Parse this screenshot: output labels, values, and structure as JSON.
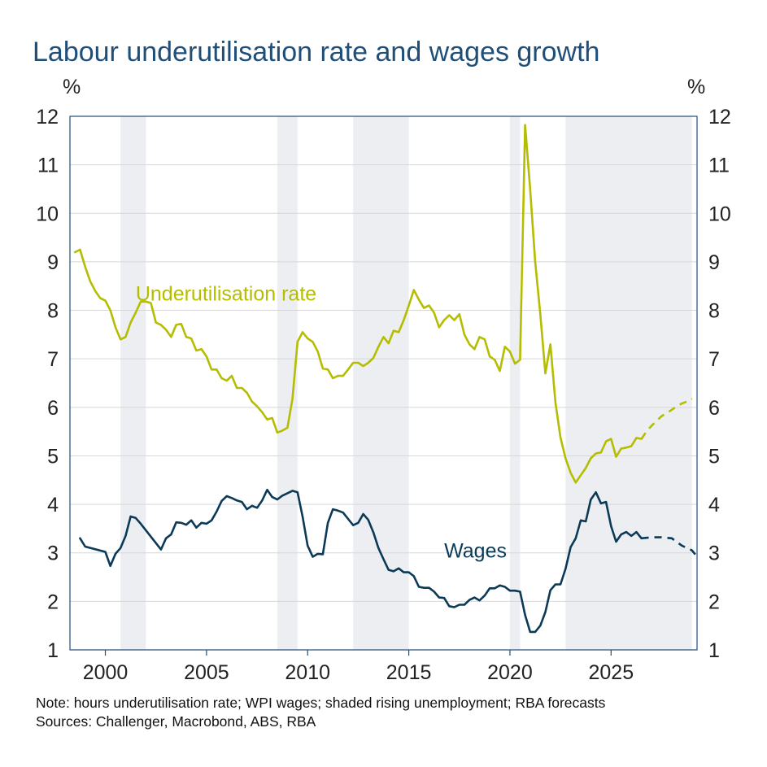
{
  "chart_data": {
    "type": "line",
    "title": "Labour underutilisation rate and wages growth",
    "y_unit_left": "%",
    "y_unit_right": "%",
    "ylim": [
      1,
      12
    ],
    "yticks": [
      "1",
      "2",
      "3",
      "4",
      "5",
      "6",
      "7",
      "8",
      "9",
      "10",
      "11",
      "12"
    ],
    "xlim": [
      1998.25,
      2029.25
    ],
    "xticks": [
      {
        "value": 2000,
        "label": "2000"
      },
      {
        "value": 2005,
        "label": "2005"
      },
      {
        "value": 2010,
        "label": "2010"
      },
      {
        "value": 2015,
        "label": "2015"
      },
      {
        "value": 2020,
        "label": "2020"
      },
      {
        "value": 2025,
        "label": "2025"
      }
    ],
    "grid": true,
    "shaded_periods": [
      [
        2000.75,
        2002.0
      ],
      [
        2008.5,
        2009.5
      ],
      [
        2012.25,
        2015.0
      ],
      [
        2020.0,
        2020.5
      ],
      [
        2022.75,
        2029.0
      ]
    ],
    "colors": {
      "underutilisation": "#b5bd00",
      "wages": "#0b3a57",
      "shade": "#eceef1",
      "title": "#1f4e79"
    },
    "series": [
      {
        "name": "Underutilisation rate",
        "label_position": [
          2001.5,
          8.2
        ],
        "points": [
          [
            1998.5,
            9.2
          ],
          [
            1998.75,
            9.25
          ],
          [
            1999.0,
            8.9
          ],
          [
            1999.25,
            8.6
          ],
          [
            1999.5,
            8.4
          ],
          [
            1999.75,
            8.25
          ],
          [
            2000.0,
            8.2
          ],
          [
            2000.25,
            8.0
          ],
          [
            2000.5,
            7.65
          ],
          [
            2000.75,
            7.4
          ],
          [
            2001.0,
            7.45
          ],
          [
            2001.25,
            7.75
          ],
          [
            2001.5,
            7.95
          ],
          [
            2001.75,
            8.18
          ],
          [
            2002.0,
            8.18
          ],
          [
            2002.25,
            8.15
          ],
          [
            2002.5,
            7.75
          ],
          [
            2002.75,
            7.7
          ],
          [
            2003.0,
            7.6
          ],
          [
            2003.25,
            7.45
          ],
          [
            2003.5,
            7.7
          ],
          [
            2003.75,
            7.72
          ],
          [
            2004.0,
            7.45
          ],
          [
            2004.25,
            7.42
          ],
          [
            2004.5,
            7.17
          ],
          [
            2004.75,
            7.2
          ],
          [
            2005.0,
            7.05
          ],
          [
            2005.25,
            6.78
          ],
          [
            2005.5,
            6.78
          ],
          [
            2005.75,
            6.6
          ],
          [
            2006.0,
            6.55
          ],
          [
            2006.25,
            6.65
          ],
          [
            2006.5,
            6.4
          ],
          [
            2006.75,
            6.4
          ],
          [
            2007.0,
            6.3
          ],
          [
            2007.25,
            6.12
          ],
          [
            2007.5,
            6.02
          ],
          [
            2007.75,
            5.9
          ],
          [
            2008.0,
            5.75
          ],
          [
            2008.25,
            5.78
          ],
          [
            2008.5,
            5.48
          ],
          [
            2008.75,
            5.52
          ],
          [
            2009.0,
            5.58
          ],
          [
            2009.25,
            6.18
          ],
          [
            2009.5,
            7.35
          ],
          [
            2009.75,
            7.55
          ],
          [
            2010.0,
            7.42
          ],
          [
            2010.25,
            7.35
          ],
          [
            2010.5,
            7.15
          ],
          [
            2010.75,
            6.8
          ],
          [
            2011.0,
            6.78
          ],
          [
            2011.25,
            6.6
          ],
          [
            2011.5,
            6.65
          ],
          [
            2011.75,
            6.65
          ],
          [
            2012.0,
            6.78
          ],
          [
            2012.25,
            6.92
          ],
          [
            2012.5,
            6.92
          ],
          [
            2012.75,
            6.85
          ],
          [
            2013.0,
            6.92
          ],
          [
            2013.25,
            7.02
          ],
          [
            2013.5,
            7.25
          ],
          [
            2013.75,
            7.45
          ],
          [
            2014.0,
            7.32
          ],
          [
            2014.25,
            7.58
          ],
          [
            2014.5,
            7.55
          ],
          [
            2014.75,
            7.8
          ],
          [
            2015.0,
            8.1
          ],
          [
            2015.25,
            8.42
          ],
          [
            2015.5,
            8.22
          ],
          [
            2015.75,
            8.05
          ],
          [
            2016.0,
            8.1
          ],
          [
            2016.25,
            7.95
          ],
          [
            2016.5,
            7.65
          ],
          [
            2016.75,
            7.8
          ],
          [
            2017.0,
            7.9
          ],
          [
            2017.25,
            7.8
          ],
          [
            2017.5,
            7.92
          ],
          [
            2017.75,
            7.5
          ],
          [
            2018.0,
            7.3
          ],
          [
            2018.25,
            7.2
          ],
          [
            2018.5,
            7.45
          ],
          [
            2018.75,
            7.4
          ],
          [
            2019.0,
            7.05
          ],
          [
            2019.25,
            6.98
          ],
          [
            2019.5,
            6.75
          ],
          [
            2019.75,
            7.25
          ],
          [
            2020.0,
            7.15
          ],
          [
            2020.25,
            6.9
          ],
          [
            2020.5,
            6.98
          ],
          [
            2020.75,
            11.82
          ],
          [
            2021.0,
            10.5
          ],
          [
            2021.25,
            9.0
          ],
          [
            2021.5,
            7.92
          ],
          [
            2021.75,
            6.7
          ],
          [
            2022.0,
            7.3
          ],
          [
            2022.25,
            6.1
          ],
          [
            2022.5,
            5.38
          ],
          [
            2022.75,
            4.95
          ],
          [
            2023.0,
            4.65
          ],
          [
            2023.25,
            4.45
          ],
          [
            2023.5,
            4.6
          ],
          [
            2023.75,
            4.75
          ],
          [
            2024.0,
            4.95
          ],
          [
            2024.25,
            5.05
          ],
          [
            2024.5,
            5.07
          ],
          [
            2024.75,
            5.3
          ],
          [
            2025.0,
            5.35
          ],
          [
            2025.25,
            4.98
          ],
          [
            2025.5,
            5.15
          ],
          [
            2025.75,
            5.17
          ],
          [
            2026.0,
            5.2
          ],
          [
            2026.25,
            5.37
          ],
          [
            2026.5,
            5.35
          ]
        ],
        "forecast": [
          [
            2026.5,
            5.35
          ],
          [
            2026.75,
            5.5
          ],
          [
            2027.0,
            5.62
          ],
          [
            2027.25,
            5.72
          ],
          [
            2027.5,
            5.82
          ],
          [
            2027.75,
            5.88
          ],
          [
            2028.0,
            5.95
          ],
          [
            2028.25,
            6.02
          ],
          [
            2028.5,
            6.08
          ],
          [
            2028.75,
            6.12
          ],
          [
            2029.0,
            6.18
          ]
        ]
      },
      {
        "name": "Wages",
        "label_position": [
          2016.75,
          2.9
        ],
        "points": [
          [
            1998.75,
            3.3
          ],
          [
            1999.0,
            3.13
          ],
          [
            2000.0,
            3.02
          ],
          [
            2000.25,
            2.73
          ],
          [
            2000.5,
            2.98
          ],
          [
            2000.75,
            3.1
          ],
          [
            2001.0,
            3.35
          ],
          [
            2001.25,
            3.75
          ],
          [
            2001.5,
            3.72
          ],
          [
            2001.75,
            3.6
          ],
          [
            2002.75,
            3.07
          ],
          [
            2003.0,
            3.3
          ],
          [
            2003.25,
            3.38
          ],
          [
            2003.5,
            3.63
          ],
          [
            2003.75,
            3.62
          ],
          [
            2004.0,
            3.58
          ],
          [
            2004.25,
            3.67
          ],
          [
            2004.5,
            3.52
          ],
          [
            2004.75,
            3.62
          ],
          [
            2005.0,
            3.6
          ],
          [
            2005.25,
            3.67
          ],
          [
            2005.5,
            3.85
          ],
          [
            2005.75,
            4.07
          ],
          [
            2006.0,
            4.17
          ],
          [
            2006.25,
            4.13
          ],
          [
            2006.5,
            4.08
          ],
          [
            2006.75,
            4.05
          ],
          [
            2007.0,
            3.9
          ],
          [
            2007.25,
            3.97
          ],
          [
            2007.5,
            3.93
          ],
          [
            2007.75,
            4.08
          ],
          [
            2008.0,
            4.3
          ],
          [
            2008.25,
            4.15
          ],
          [
            2008.5,
            4.1
          ],
          [
            2008.75,
            4.18
          ],
          [
            2009.0,
            4.23
          ],
          [
            2009.25,
            4.28
          ],
          [
            2009.5,
            4.25
          ],
          [
            2009.75,
            3.75
          ],
          [
            2010.0,
            3.15
          ],
          [
            2010.25,
            2.92
          ],
          [
            2010.5,
            2.98
          ],
          [
            2010.75,
            2.97
          ],
          [
            2011.0,
            3.62
          ],
          [
            2011.25,
            3.9
          ],
          [
            2011.5,
            3.87
          ],
          [
            2011.75,
            3.83
          ],
          [
            2012.0,
            3.7
          ],
          [
            2012.25,
            3.57
          ],
          [
            2012.5,
            3.62
          ],
          [
            2012.75,
            3.8
          ],
          [
            2013.0,
            3.68
          ],
          [
            2013.25,
            3.42
          ],
          [
            2013.5,
            3.1
          ],
          [
            2013.75,
            2.87
          ],
          [
            2014.0,
            2.65
          ],
          [
            2014.25,
            2.62
          ],
          [
            2014.5,
            2.68
          ],
          [
            2014.75,
            2.6
          ],
          [
            2015.0,
            2.6
          ],
          [
            2015.25,
            2.52
          ],
          [
            2015.5,
            2.3
          ],
          [
            2015.75,
            2.28
          ],
          [
            2016.0,
            2.28
          ],
          [
            2016.25,
            2.2
          ],
          [
            2016.5,
            2.08
          ],
          [
            2016.75,
            2.07
          ],
          [
            2017.0,
            1.9
          ],
          [
            2017.25,
            1.88
          ],
          [
            2017.5,
            1.93
          ],
          [
            2017.75,
            1.93
          ],
          [
            2018.0,
            2.03
          ],
          [
            2018.25,
            2.08
          ],
          [
            2018.5,
            2.02
          ],
          [
            2018.75,
            2.12
          ],
          [
            2019.0,
            2.27
          ],
          [
            2019.25,
            2.27
          ],
          [
            2019.5,
            2.33
          ],
          [
            2019.75,
            2.3
          ],
          [
            2020.0,
            2.22
          ],
          [
            2020.25,
            2.22
          ],
          [
            2020.5,
            2.2
          ],
          [
            2020.75,
            1.72
          ],
          [
            2021.0,
            1.37
          ],
          [
            2021.25,
            1.37
          ],
          [
            2021.5,
            1.5
          ],
          [
            2021.75,
            1.78
          ],
          [
            2022.0,
            2.23
          ],
          [
            2022.25,
            2.35
          ],
          [
            2022.5,
            2.35
          ],
          [
            2022.75,
            2.67
          ],
          [
            2023.0,
            3.12
          ],
          [
            2023.25,
            3.3
          ],
          [
            2023.5,
            3.67
          ],
          [
            2023.75,
            3.65
          ],
          [
            2024.0,
            4.1
          ],
          [
            2024.25,
            4.25
          ],
          [
            2024.5,
            4.02
          ],
          [
            2024.75,
            4.05
          ],
          [
            2025.0,
            3.55
          ],
          [
            2025.25,
            3.23
          ],
          [
            2025.5,
            3.38
          ],
          [
            2025.75,
            3.43
          ],
          [
            2026.0,
            3.35
          ],
          [
            2026.25,
            3.43
          ],
          [
            2026.5,
            3.3
          ]
        ],
        "forecast": [
          [
            2026.5,
            3.3
          ],
          [
            2027.0,
            3.32
          ],
          [
            2027.5,
            3.32
          ],
          [
            2028.0,
            3.3
          ],
          [
            2028.5,
            3.15
          ],
          [
            2029.0,
            3.05
          ],
          [
            2029.25,
            2.92
          ]
        ]
      }
    ]
  },
  "footer": {
    "note": "Note: hours underutilisation rate; WPI wages; shaded rising unemployment; RBA forecasts",
    "sources": "Sources: Challenger, Macrobond, ABS, RBA"
  }
}
